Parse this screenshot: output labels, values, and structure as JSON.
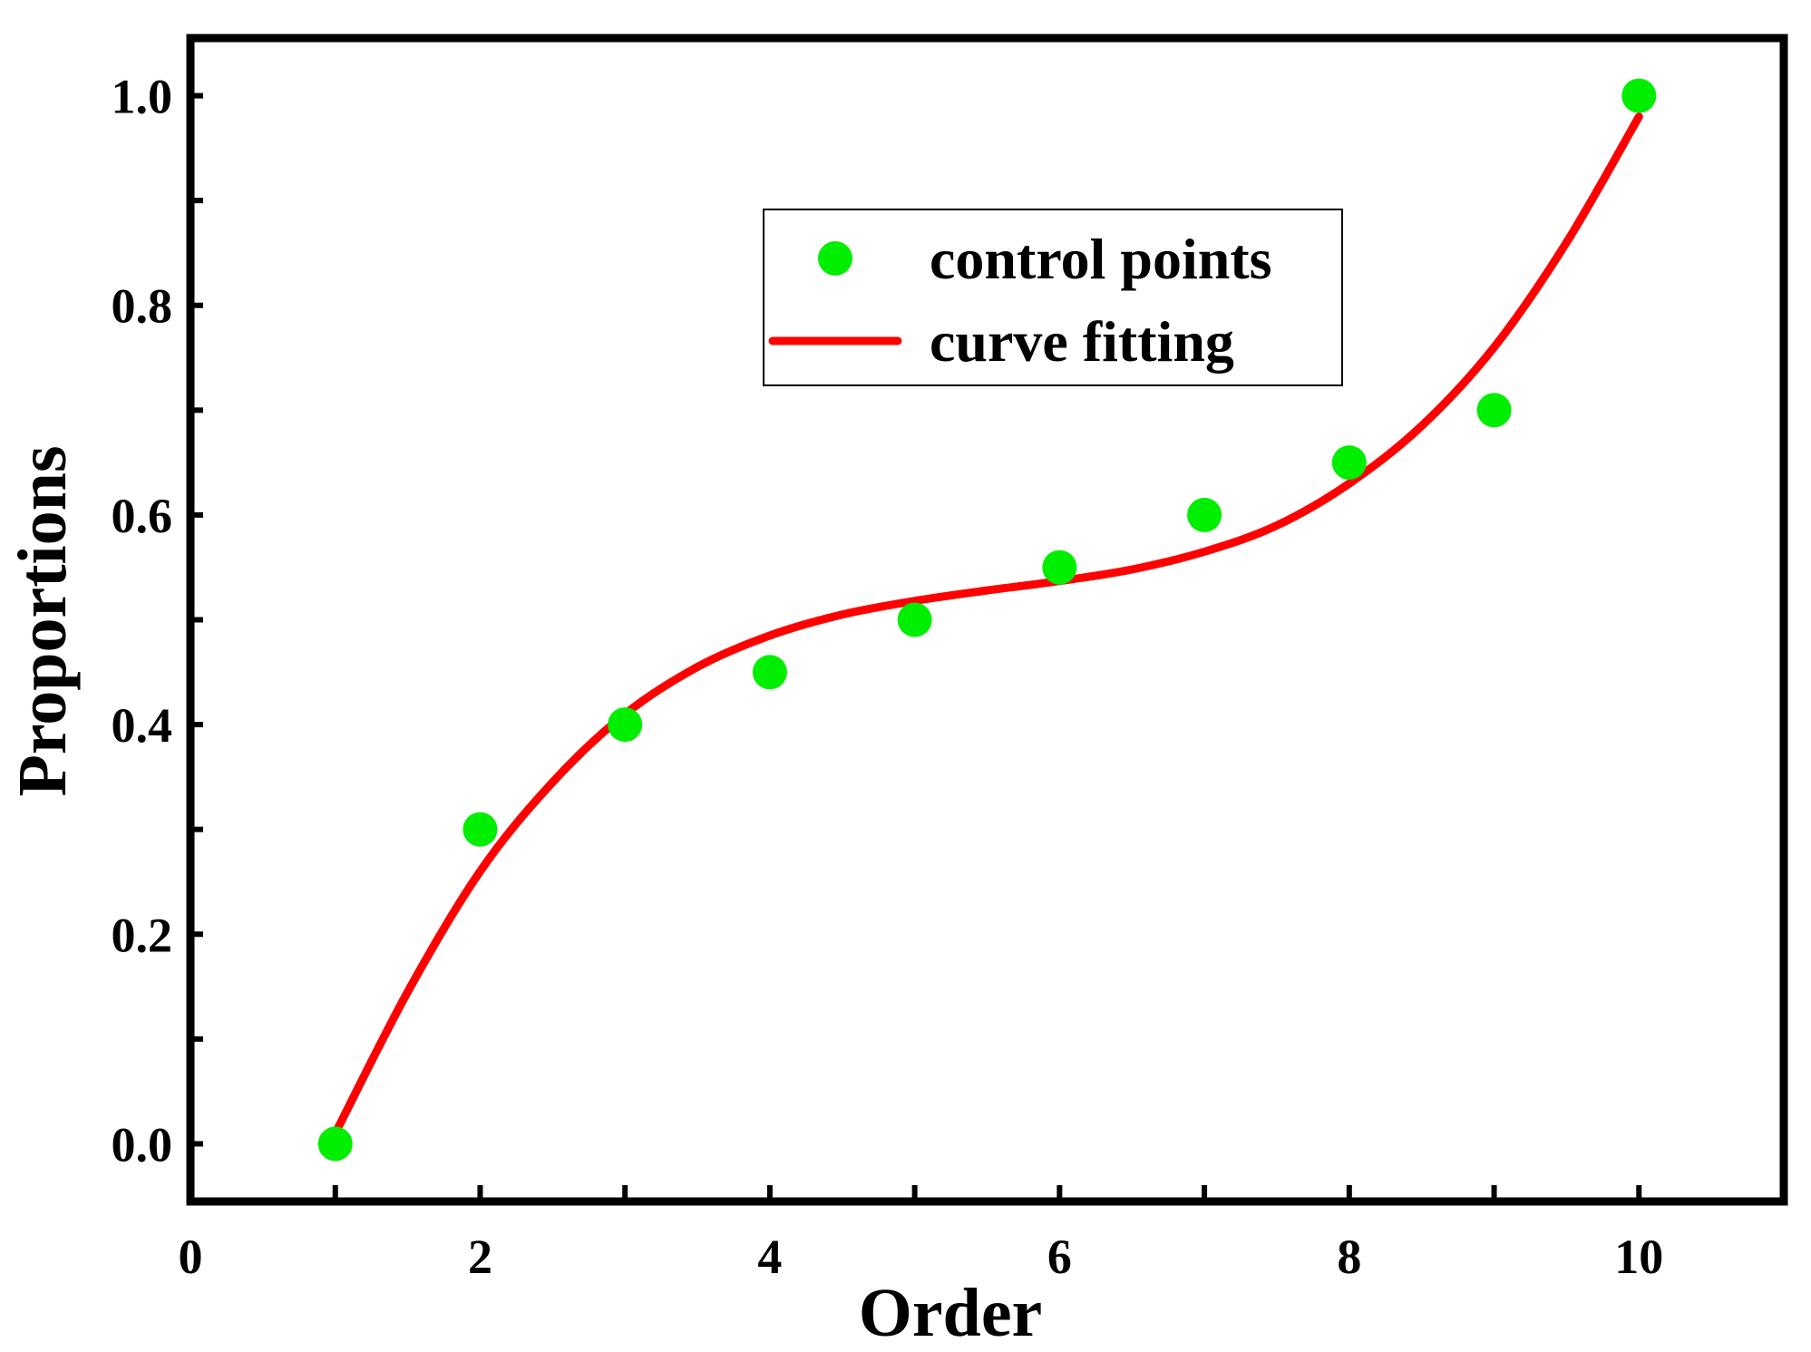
{
  "chart_data": {
    "type": "scatter",
    "xlabel": "Order",
    "ylabel": "Proportions",
    "xlim": [
      0,
      11
    ],
    "ylim": [
      -0.055,
      1.055
    ],
    "x_ticks": [
      "0",
      "2",
      "4",
      "6",
      "8",
      "10"
    ],
    "y_ticks": [
      "0.0",
      "0.2",
      "0.4",
      "0.6",
      "0.8",
      "1.0"
    ],
    "grid": false,
    "legend_position": "top-center",
    "series": [
      {
        "name": "control points",
        "type": "scatter",
        "color": "#00ee00",
        "x": [
          1,
          2,
          3,
          4,
          5,
          6,
          7,
          8,
          9,
          10
        ],
        "y": [
          0.0,
          0.3,
          0.4,
          0.45,
          0.5,
          0.55,
          0.6,
          0.65,
          0.7,
          1.0
        ]
      },
      {
        "name": "curve fitting",
        "type": "line",
        "color": "#ff0000",
        "x": [
          1,
          1.5,
          2,
          2.5,
          3,
          3.5,
          4,
          4.5,
          5,
          5.5,
          6,
          6.5,
          7,
          7.5,
          8,
          8.5,
          9,
          9.5,
          10
        ],
        "y": [
          0.01,
          0.145,
          0.26,
          0.345,
          0.41,
          0.455,
          0.485,
          0.505,
          0.518,
          0.528,
          0.537,
          0.548,
          0.565,
          0.59,
          0.63,
          0.685,
          0.76,
          0.86,
          0.98
        ]
      }
    ]
  }
}
